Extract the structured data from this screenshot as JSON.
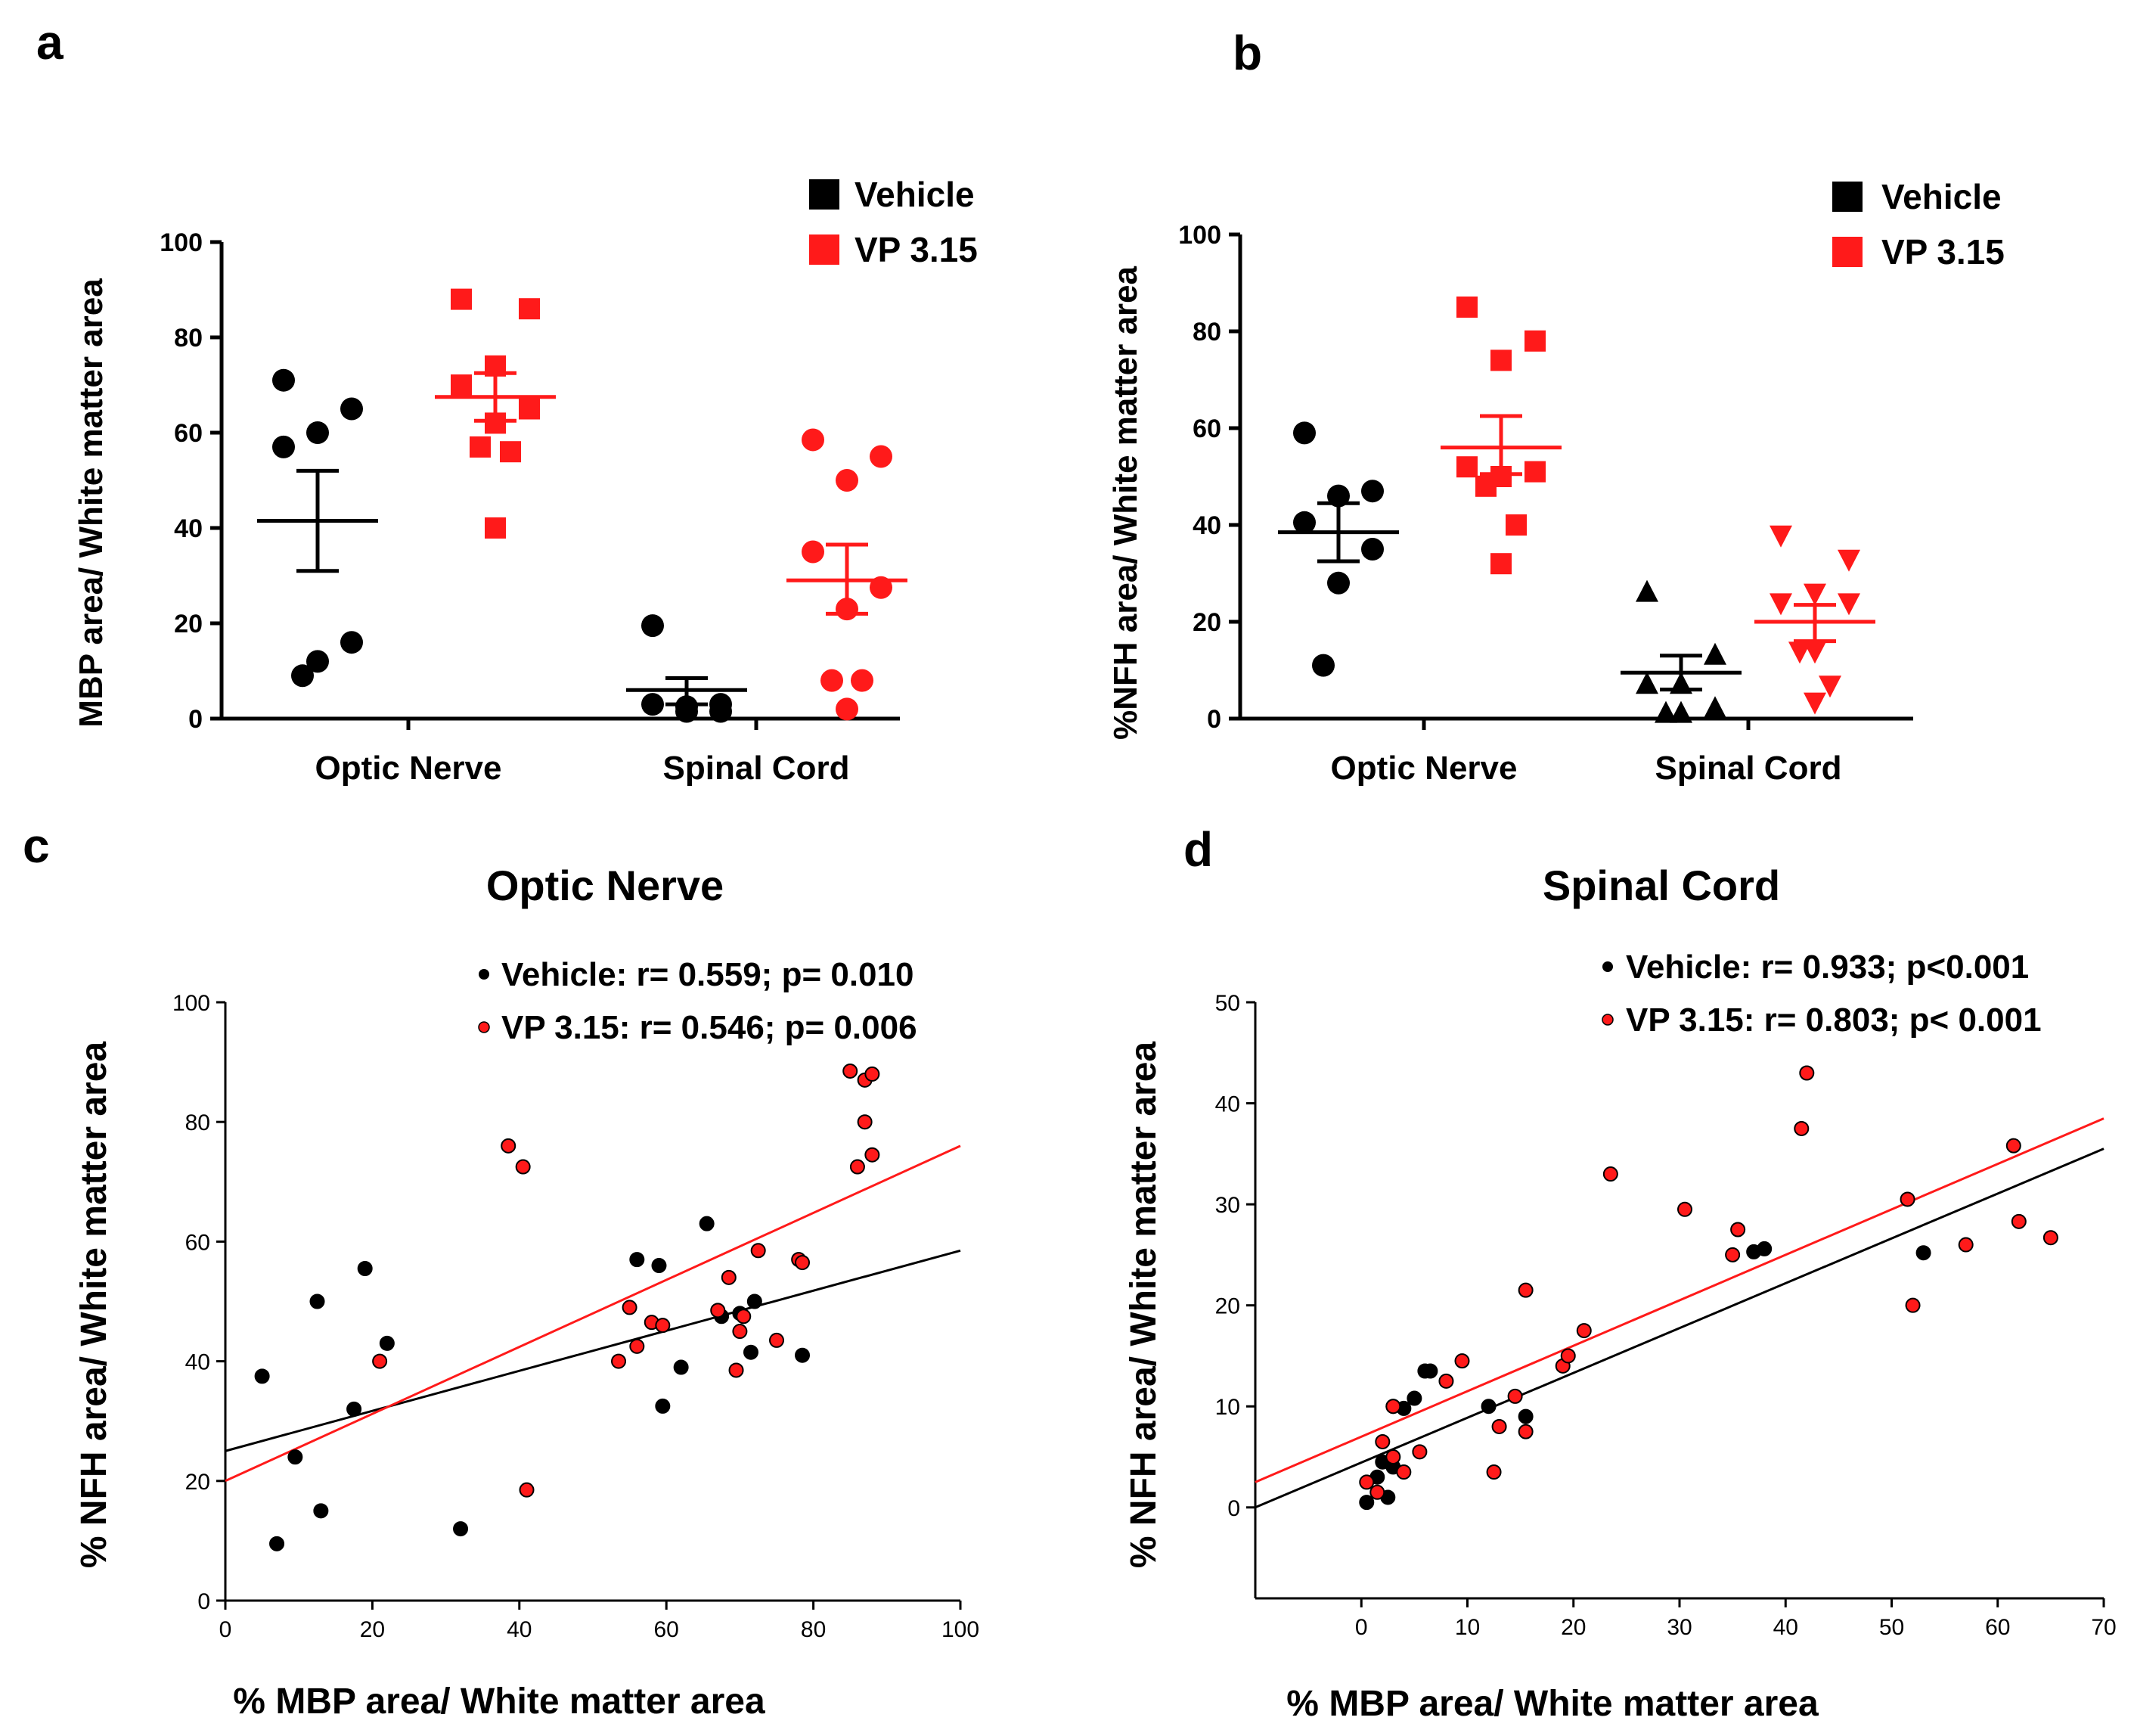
{
  "colors": {
    "vehicle": "#000000",
    "vp315": "#ff1a1a",
    "axis": "#000000"
  },
  "panels": [
    {
      "letter": "a",
      "ylabel": "MBP area/ White matter area",
      "ylim": [
        0,
        100
      ],
      "yticks": [
        "0",
        "20",
        "40",
        "60",
        "80",
        "100"
      ],
      "categories": [
        "Optic Nerve",
        "Spinal Cord"
      ],
      "legend": [
        "Vehicle",
        "VP 3.15"
      ]
    },
    {
      "letter": "b",
      "ylabel": "%NFH area/ White matter area",
      "ylim": [
        0,
        100
      ],
      "yticks": [
        "0",
        "20",
        "40",
        "60",
        "80",
        "100"
      ],
      "categories": [
        "Optic Nerve",
        "Spinal Cord"
      ],
      "legend": [
        "Vehicle",
        "VP 3.15"
      ]
    },
    {
      "letter": "c",
      "title": "Optic Nerve",
      "xlabel": "% MBP area/ White matter area",
      "ylabel": "% NFH area/ White matter area",
      "xticks": [
        "0",
        "20",
        "40",
        "60",
        "80",
        "100"
      ],
      "yticks": [
        "0",
        "20",
        "40",
        "60",
        "80",
        "100"
      ],
      "legend": [
        "Vehicle: r= 0.559; p= 0.010",
        "VP 3.15: r= 0.546; p= 0.006"
      ]
    },
    {
      "letter": "d",
      "title": "Spinal Cord",
      "xlabel": "% MBP area/ White matter area",
      "ylabel": "% NFH area/ White matter area",
      "xticks": [
        "0",
        "10",
        "20",
        "30",
        "40",
        "50",
        "60",
        "70"
      ],
      "yticks": [
        "0",
        "10",
        "20",
        "30",
        "40",
        "50"
      ],
      "legend": [
        "Vehicle: r= 0.933; p<0.001",
        "VP 3.15: r= 0.803; p< 0.001"
      ]
    }
  ],
  "chart_data": [
    {
      "type": "scatter",
      "panel": "a",
      "ylabel": "MBP area/ White matter area",
      "ylim": [
        0,
        100
      ],
      "categories": [
        "Optic Nerve",
        "Spinal Cord"
      ],
      "series": [
        {
          "name": "Vehicle",
          "category": "Optic Nerve",
          "marker": "circle",
          "values": [
            71,
            65,
            60,
            57,
            16,
            12,
            9
          ],
          "mean": 41.5,
          "sem_range": [
            31,
            52
          ]
        },
        {
          "name": "VP 3.15",
          "category": "Optic Nerve",
          "marker": "square",
          "values": [
            88,
            86,
            74,
            70,
            65,
            62,
            57,
            56,
            40
          ],
          "mean": 67.5,
          "sem_range": [
            62.5,
            72.5
          ]
        },
        {
          "name": "Vehicle",
          "category": "Spinal Cord",
          "marker": "circle",
          "values": [
            19.5,
            3,
            2.5,
            3,
            1.5,
            1.5
          ],
          "mean": 6,
          "sem_range": [
            3,
            8.5
          ]
        },
        {
          "name": "VP 3.15",
          "category": "Spinal Cord",
          "marker": "circle",
          "values": [
            58.5,
            55,
            50,
            35,
            27.5,
            23,
            8,
            8,
            2
          ],
          "mean": 29,
          "sem_range": [
            22,
            36.5
          ]
        }
      ]
    },
    {
      "type": "scatter",
      "panel": "b",
      "ylabel": "%NFH area/ White matter area",
      "ylim": [
        0,
        100
      ],
      "categories": [
        "Optic Nerve",
        "Spinal Cord"
      ],
      "series": [
        {
          "name": "Vehicle",
          "category": "Optic Nerve",
          "marker": "circle",
          "values": [
            59,
            47,
            46,
            40.5,
            35,
            28,
            11
          ],
          "mean": 38.5,
          "sem_range": [
            32.5,
            44.5
          ]
        },
        {
          "name": "VP 3.15",
          "category": "Optic Nerve",
          "marker": "square",
          "values": [
            85,
            78,
            74,
            52,
            51,
            50,
            48,
            40,
            32
          ],
          "mean": 56,
          "sem_range": [
            50.5,
            62.5
          ]
        },
        {
          "name": "Vehicle",
          "category": "Spinal Cord",
          "marker": "triangle-up",
          "values": [
            26,
            13,
            7,
            7,
            2,
            1,
            1
          ],
          "mean": 9.5,
          "sem_range": [
            6,
            13
          ]
        },
        {
          "name": "VP 3.15",
          "category": "Spinal Cord",
          "marker": "triangle-down",
          "values": [
            38,
            33,
            26,
            24,
            24,
            14,
            14,
            7,
            3.5
          ],
          "mean": 20,
          "sem_range": [
            16,
            23.5
          ]
        }
      ]
    },
    {
      "type": "scatter",
      "panel": "c",
      "title": "Optic Nerve",
      "xlabel": "% MBP area/ White matter area",
      "ylabel": "% NFH area/ White matter area",
      "xlim": [
        0,
        100
      ],
      "ylim": [
        0,
        100
      ],
      "series": [
        {
          "name": "Vehicle",
          "points": [
            [
              5,
              37.5
            ],
            [
              7,
              9.5
            ],
            [
              9.5,
              24
            ],
            [
              12.5,
              50
            ],
            [
              13,
              15
            ],
            [
              17.5,
              32
            ],
            [
              19,
              55.5
            ],
            [
              22,
              43
            ],
            [
              32,
              12
            ],
            [
              56,
              57
            ],
            [
              59,
              56
            ],
            [
              59.5,
              32.5
            ],
            [
              62,
              39
            ],
            [
              65.5,
              63
            ],
            [
              67.5,
              47.5
            ],
            [
              70,
              48
            ],
            [
              71.5,
              41.5
            ],
            [
              72,
              50
            ],
            [
              78.5,
              41
            ]
          ],
          "fit": [
            [
              0,
              25
            ],
            [
              100,
              58.5
            ]
          ]
        },
        {
          "name": "VP 3.15",
          "points": [
            [
              21,
              40
            ],
            [
              38.5,
              76
            ],
            [
              40.5,
              72.5
            ],
            [
              41,
              18.5
            ],
            [
              53.5,
              40
            ],
            [
              55,
              49
            ],
            [
              56,
              42.5
            ],
            [
              58,
              46.5
            ],
            [
              59.5,
              46
            ],
            [
              67,
              48.5
            ],
            [
              68.5,
              54
            ],
            [
              69.5,
              38.5
            ],
            [
              70,
              45
            ],
            [
              70.5,
              47.5
            ],
            [
              72.5,
              58.5
            ],
            [
              75,
              43.5
            ],
            [
              78,
              57
            ],
            [
              78.5,
              56.5
            ],
            [
              85,
              88.5
            ],
            [
              86,
              72.5
            ],
            [
              87,
              87
            ],
            [
              87,
              80
            ],
            [
              88,
              88
            ],
            [
              88,
              74.5
            ]
          ],
          "fit": [
            [
              0,
              20
            ],
            [
              100,
              76
            ]
          ]
        }
      ]
    },
    {
      "type": "scatter",
      "panel": "d",
      "title": "Spinal Cord",
      "xlabel": "% MBP area/ White matter area",
      "ylabel": "% NFH area/ White matter area",
      "xlim": [
        -10,
        70
      ],
      "ylim": [
        -9,
        50
      ],
      "series": [
        {
          "name": "Vehicle",
          "points": [
            [
              0.5,
              0.5
            ],
            [
              1.5,
              3
            ],
            [
              2,
              4.5
            ],
            [
              2.5,
              1
            ],
            [
              3,
              10
            ],
            [
              3,
              4
            ],
            [
              4,
              9.8
            ],
            [
              5,
              10.8
            ],
            [
              6,
              13.5
            ],
            [
              6.5,
              13.5
            ],
            [
              12,
              10
            ],
            [
              15.5,
              9
            ],
            [
              37,
              25.3
            ],
            [
              38,
              25.6
            ],
            [
              53,
              25.2
            ]
          ],
          "fit": [
            [
              -10,
              0
            ],
            [
              70,
              35.5
            ]
          ]
        },
        {
          "name": "VP 3.15",
          "points": [
            [
              0.5,
              2.5
            ],
            [
              1.5,
              1.5
            ],
            [
              2,
              6.5
            ],
            [
              3,
              10
            ],
            [
              3,
              5
            ],
            [
              4,
              3.5
            ],
            [
              5.5,
              5.5
            ],
            [
              8,
              12.5
            ],
            [
              9.5,
              14.5
            ],
            [
              12.5,
              3.5
            ],
            [
              13,
              8
            ],
            [
              14.5,
              11
            ],
            [
              15.5,
              7.5
            ],
            [
              15.5,
              21.5
            ],
            [
              19,
              14
            ],
            [
              19.5,
              15
            ],
            [
              21,
              17.5
            ],
            [
              23.5,
              33
            ],
            [
              30.5,
              29.5
            ],
            [
              35,
              25
            ],
            [
              35.5,
              27.5
            ],
            [
              41.5,
              37.5
            ],
            [
              42,
              43
            ],
            [
              51.5,
              30.5
            ],
            [
              52,
              20
            ],
            [
              57,
              26
            ],
            [
              61.5,
              35.8
            ],
            [
              62,
              28.3
            ],
            [
              65,
              26.7
            ]
          ],
          "fit": [
            [
              -10,
              2.5
            ],
            [
              70,
              38.5
            ]
          ]
        }
      ]
    }
  ]
}
